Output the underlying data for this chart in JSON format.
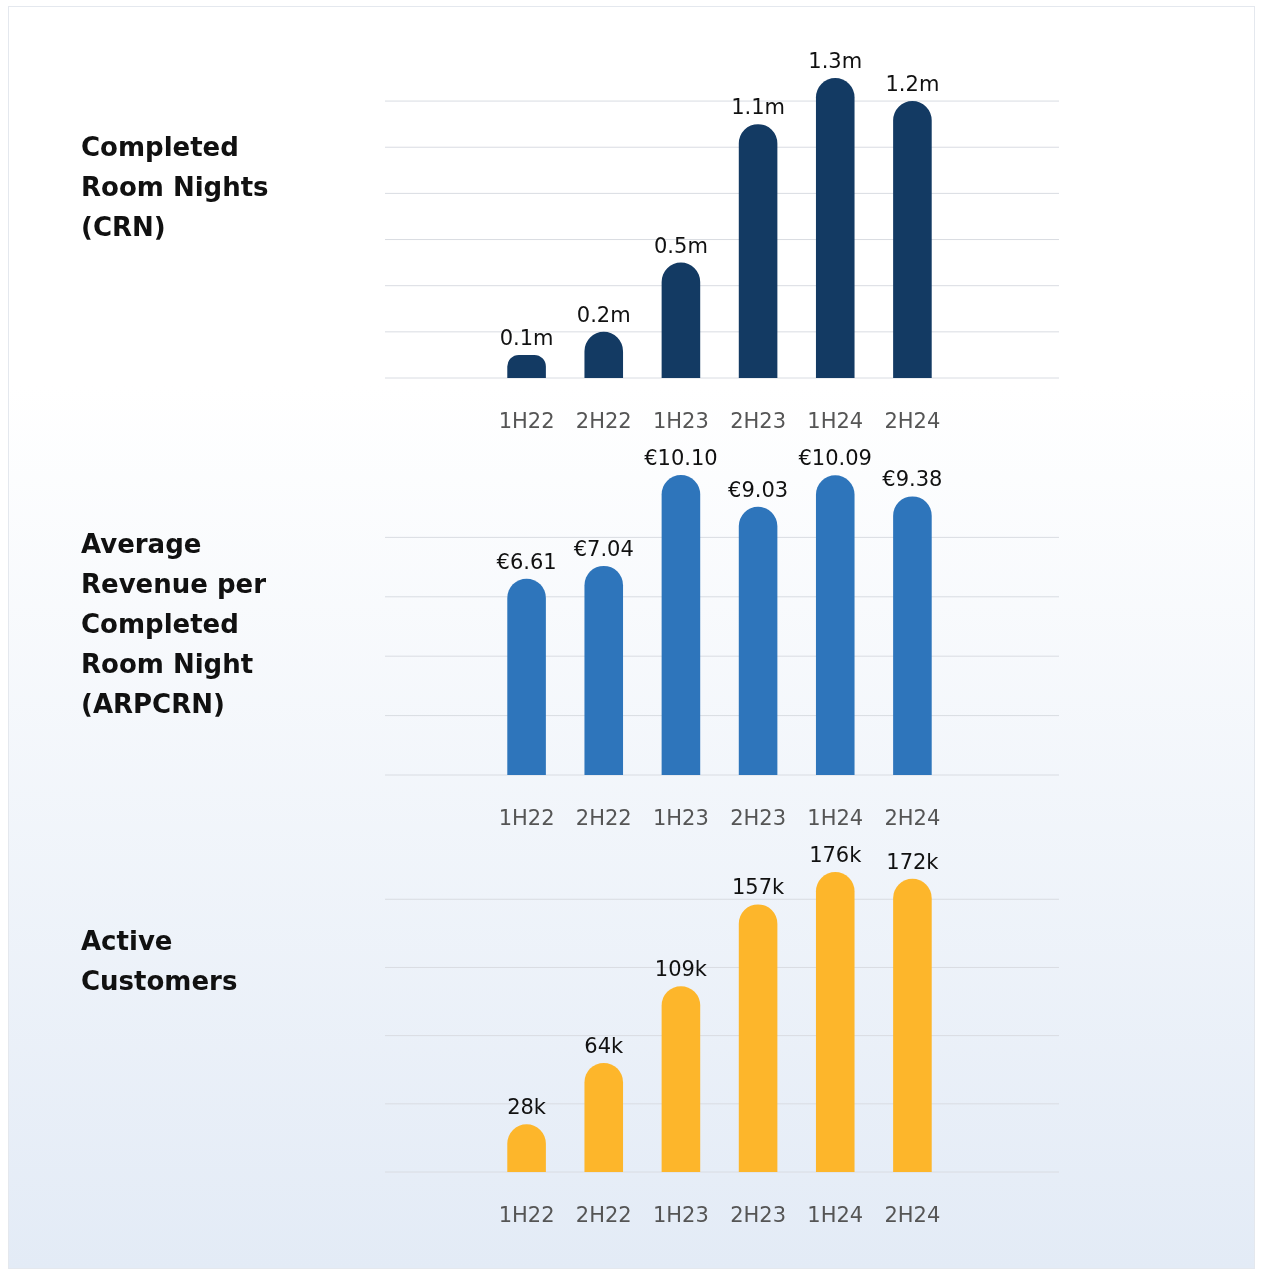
{
  "chart_data": [
    {
      "type": "bar",
      "ylabel": "Completed Room Nights (CRN)",
      "categories": [
        "1H22",
        "2H22",
        "1H23",
        "2H23",
        "1H24",
        "2H24"
      ],
      "series": [
        {
          "color": "#133a63",
          "values": [
            0.1,
            0.2,
            0.5,
            1.1,
            1.3,
            1.2
          ],
          "value_labels": [
            "0.1m",
            "0.2m",
            "0.5m",
            "1.1m",
            "1.3m",
            "1.2m"
          ]
        }
      ],
      "yticks": [
        {
          "value": 0,
          "label": null
        },
        {
          "value": 0.2,
          "label": null
        },
        {
          "value": 0.4,
          "label": null
        },
        {
          "value": 0.6,
          "label": null
        },
        {
          "value": 0.8,
          "label": null
        },
        {
          "value": 1.0,
          "label": null
        },
        {
          "value": 1.2,
          "label": null
        }
      ],
      "grid": "y",
      "tick_labels": "x"
    },
    {
      "type": "bar",
      "ylabel": "Average Revenue per Completed Room Night (ARPCRN)",
      "categories": [
        "1H22",
        "2H22",
        "1H23",
        "2H23",
        "1H24",
        "2H24"
      ],
      "series": [
        {
          "color": "#2e75bb",
          "values": [
            6.61,
            7.04,
            10.1,
            9.03,
            10.09,
            9.38
          ],
          "value_labels": [
            "€6.61",
            "€7.04",
            "€10.10",
            "€9.03",
            "€10.09",
            "€9.38"
          ]
        }
      ],
      "yticks": [
        {
          "value": 0,
          "label": null
        },
        {
          "value": 2,
          "label": null
        },
        {
          "value": 4,
          "label": null
        },
        {
          "value": 6,
          "label": null
        },
        {
          "value": 8,
          "label": null
        }
      ],
      "grid": "y",
      "tick_labels": "x"
    },
    {
      "type": "bar",
      "ylabel": "Active Customers",
      "categories": [
        "1H22",
        "2H22",
        "1H23",
        "2H23",
        "1H24",
        "2H24"
      ],
      "series": [
        {
          "color": "#fdb62b",
          "values": [
            28,
            64,
            109,
            157,
            176,
            172
          ],
          "value_labels": [
            "28k",
            "64k",
            "109k",
            "157k",
            "176k",
            "172k"
          ]
        }
      ],
      "yticks": [
        {
          "value": 0,
          "label": null
        },
        {
          "value": 40,
          "label": null
        },
        {
          "value": 80,
          "label": null
        },
        {
          "value": 120,
          "label": null
        },
        {
          "value": 160,
          "label": null
        }
      ],
      "grid": "y",
      "tick_labels": "x"
    }
  ]
}
